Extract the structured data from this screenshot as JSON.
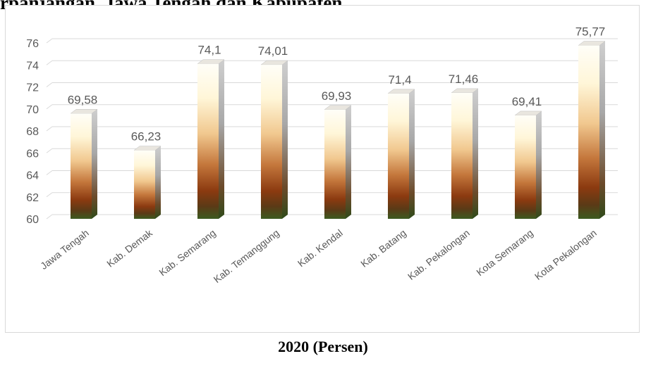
{
  "header": {
    "title_fragment": "rpanjangan, Jawa Tengah dan Kabupaten"
  },
  "caption": "2020 (Persen)",
  "chart_data": {
    "type": "bar",
    "categories": [
      "Jawa Tengah",
      "Kab. Demak",
      "Kab. Semarang",
      "Kab. Temanggung",
      "Kab. Kendal",
      "Kab. Batang",
      "Kab. Pekalongan",
      "Kota Semarang",
      "Kota Pekalongan"
    ],
    "values": [
      69.58,
      66.23,
      74.1,
      74.01,
      69.93,
      71.4,
      71.46,
      69.41,
      75.77
    ],
    "data_labels": [
      "69,58",
      "66,23",
      "74,1",
      "74,01",
      "69,93",
      "71,4",
      "71,46",
      "69,41",
      "75,77"
    ],
    "yticks": [
      60,
      62,
      64,
      66,
      68,
      70,
      72,
      74,
      76
    ],
    "ylim": [
      60,
      76
    ],
    "grid": true,
    "title": "",
    "xlabel": "",
    "ylabel": ""
  },
  "colors": {
    "bar_top": "#fffdf2",
    "bar_mid": "#f0c890",
    "bar_dark": "#8b3a10",
    "bar_base": "#3d5a24",
    "bar_side": "#9e9e9e",
    "grid": "#d9d9d9",
    "text": "#595959"
  }
}
